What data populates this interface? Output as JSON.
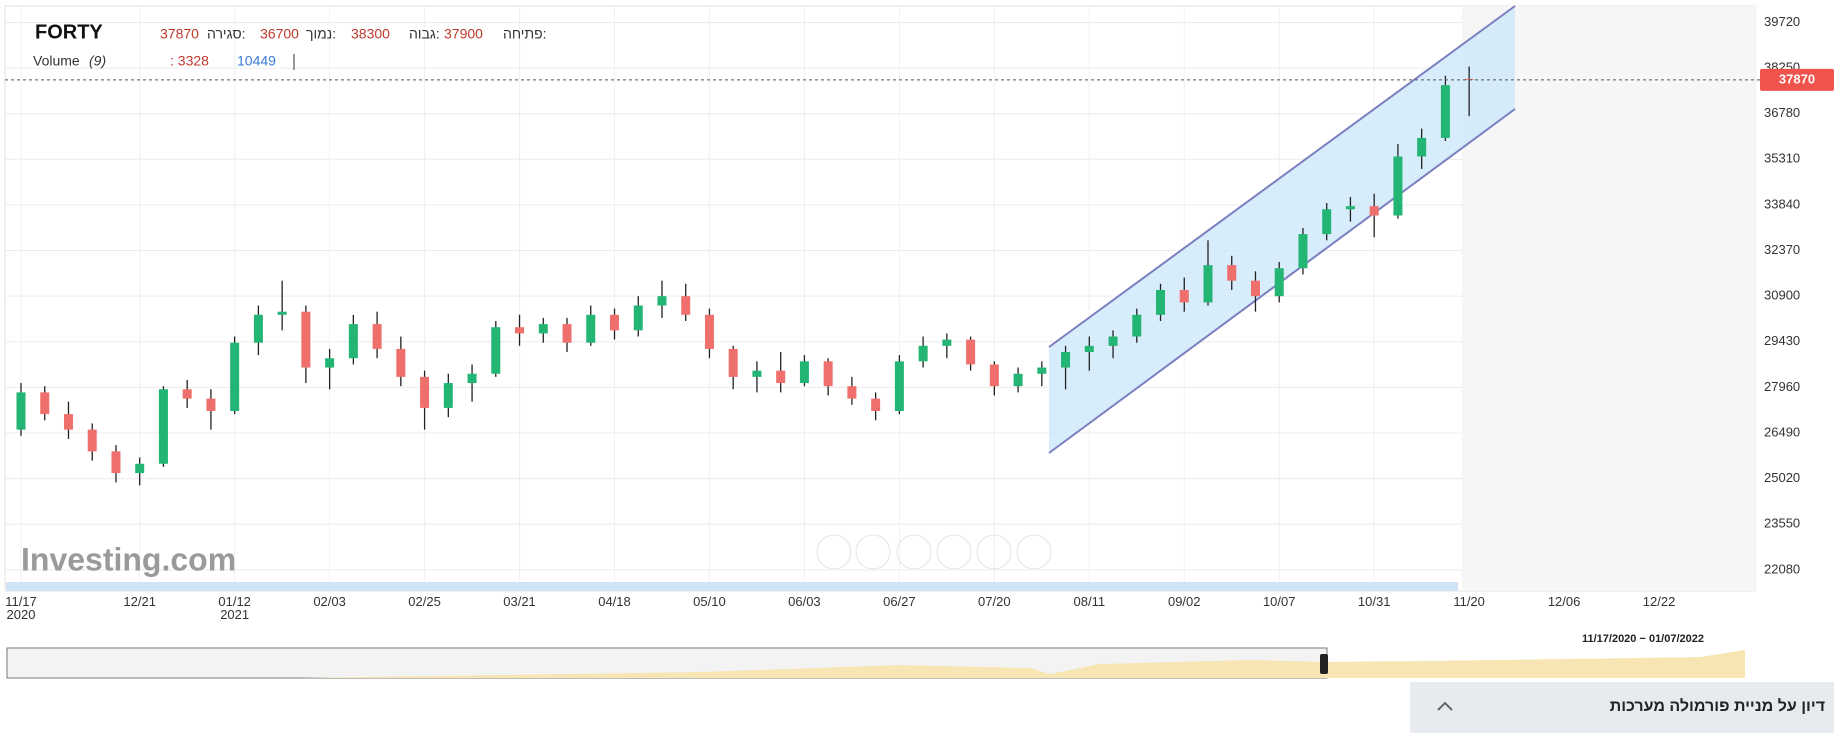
{
  "chart_data": {
    "type": "candlestick",
    "symbol": "FORTY",
    "ohlc_labels": [
      "פתיחה:",
      "גבוה:",
      "נמוך:",
      "סגירה:"
    ],
    "volume_label": "Volume",
    "volume_period": "(9)",
    "volume_readout": {
      "values": [
        3328,
        10449
      ],
      "value_labels": [
        ": 3328",
        "10449"
      ]
    },
    "watermark": "Investing.com",
    "range_label": "11/17/2020 − 01/07/2022",
    "discussion": "דיון על מניית פורמולה מערכות",
    "up_color": "#22b573",
    "down_color": "#ef6f6c",
    "categories": [
      "11/17\n2020",
      null,
      null,
      null,
      null,
      "12/21",
      null,
      null,
      null,
      "01/12\n2021",
      null,
      null,
      null,
      "02/03",
      null,
      null,
      null,
      "02/25",
      null,
      null,
      null,
      "03/21",
      null,
      null,
      null,
      "04/18",
      null,
      null,
      null,
      "05/10",
      null,
      null,
      null,
      "06/03",
      null,
      null,
      null,
      "06/27",
      null,
      null,
      null,
      "07/20",
      null,
      null,
      null,
      "08/11",
      null,
      null,
      null,
      "09/02",
      null,
      null,
      null,
      "10/07",
      null,
      null,
      null,
      "10/31",
      null,
      null,
      null,
      "11/20",
      null,
      null,
      null,
      "12/06",
      null,
      null,
      null,
      "12/22"
    ],
    "open": [
      26600,
      27800,
      27100,
      26600,
      25900,
      25200,
      25500,
      27900,
      27600,
      27200,
      29400,
      30300,
      30400,
      28600,
      28900,
      30000,
      29200,
      28300,
      27300,
      28100,
      28400,
      29900,
      29700,
      30000,
      29400,
      30300,
      29800,
      30600,
      30900,
      30300,
      29200,
      28300,
      28500,
      28100,
      28800,
      28000,
      27600,
      27200,
      28800,
      29300,
      29500,
      28700,
      28000,
      28400,
      28600,
      29100,
      29300,
      29600,
      30300,
      31100,
      30700,
      31900,
      31400,
      30900,
      31800,
      32900,
      33700,
      33800,
      33500,
      35400,
      36000,
      37900,
      null,
      null,
      null,
      null,
      null,
      null,
      null,
      null
    ],
    "high": [
      28100,
      28000,
      27500,
      26800,
      26100,
      25700,
      28000,
      28200,
      27900,
      29600,
      30600,
      31400,
      30600,
      29200,
      30300,
      30400,
      29600,
      28500,
      28400,
      28700,
      30100,
      30300,
      30200,
      30200,
      30600,
      30500,
      30900,
      31400,
      31300,
      30500,
      29300,
      28800,
      29100,
      29000,
      28900,
      28300,
      27800,
      29000,
      29600,
      29700,
      29600,
      28800,
      28600,
      28800,
      29300,
      29600,
      29800,
      30500,
      31300,
      31500,
      32700,
      32200,
      31700,
      32000,
      33100,
      33900,
      34100,
      34200,
      35800,
      36300,
      38000,
      38300,
      null,
      null,
      null,
      null,
      null,
      null,
      null,
      null
    ],
    "low": [
      26400,
      26900,
      26300,
      25600,
      24900,
      24800,
      25400,
      27300,
      26600,
      27100,
      29000,
      29800,
      28100,
      27900,
      28700,
      28900,
      28000,
      26600,
      27000,
      27500,
      28300,
      29300,
      29400,
      29100,
      29300,
      29500,
      29600,
      30200,
      30100,
      28900,
      27900,
      27800,
      27800,
      28000,
      27700,
      27400,
      26900,
      27100,
      28600,
      28900,
      28500,
      27700,
      27800,
      28000,
      27900,
      28500,
      28900,
      29400,
      30100,
      30400,
      30600,
      31100,
      30400,
      30700,
      31600,
      32700,
      33300,
      32800,
      33400,
      35000,
      35900,
      36700,
      null,
      null,
      null,
      null,
      null,
      null,
      null,
      null
    ],
    "close": [
      27800,
      27100,
      26600,
      25900,
      25200,
      25500,
      27900,
      27600,
      27200,
      29400,
      30300,
      30400,
      28600,
      28900,
      30000,
      29200,
      28300,
      27300,
      28100,
      28400,
      29900,
      29700,
      30000,
      29400,
      30300,
      29800,
      30600,
      30900,
      30300,
      29200,
      28300,
      28500,
      28100,
      28800,
      28000,
      27600,
      27200,
      28800,
      29300,
      29500,
      28700,
      28000,
      28400,
      28600,
      29100,
      29300,
      29600,
      30300,
      31100,
      30700,
      31900,
      31400,
      30900,
      31800,
      32900,
      33700,
      33800,
      33500,
      35400,
      36000,
      37700,
      37870,
      null,
      null,
      null,
      null,
      null,
      null,
      null,
      null
    ],
    "ylim": [
      21400,
      40250
    ],
    "yticks": [
      39720,
      38250,
      36780,
      35310,
      33840,
      32370,
      30900,
      29430,
      27960,
      26490,
      25020,
      23550,
      22080
    ],
    "grid": true
  }
}
